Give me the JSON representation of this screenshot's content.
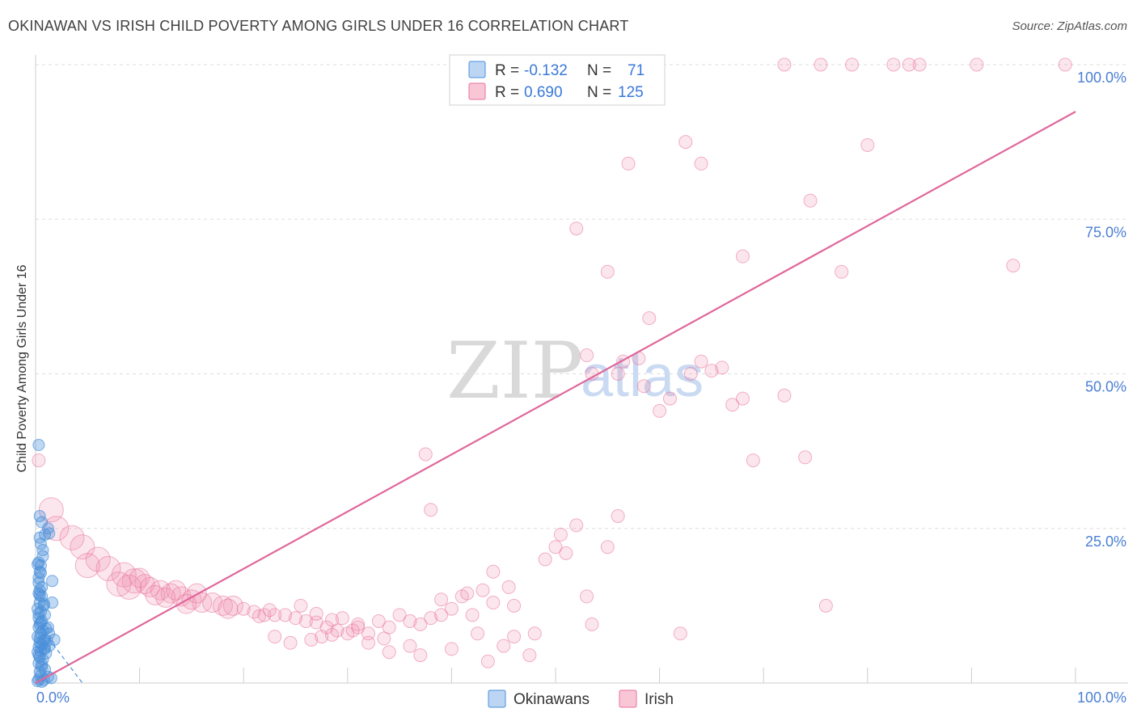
{
  "header": {
    "title": "OKINAWAN VS IRISH CHILD POVERTY AMONG GIRLS UNDER 16 CORRELATION CHART",
    "source": "Source: ZipAtlas.com"
  },
  "legend_top": {
    "r_label": "R =",
    "n_label": "N =",
    "rows": [
      {
        "r": "-0.132",
        "n": "71"
      },
      {
        "r": "0.690",
        "n": "125"
      }
    ]
  },
  "watermark": {
    "zip": "ZIP",
    "atlas": "atlas"
  },
  "colors": {
    "okinawan": "#4a90d9",
    "okinawan_fill": "rgba(74,144,217,0.35)",
    "irish": "#e8729a",
    "irish_fill": "rgba(240,140,175,0.22)",
    "irish_line": "#e0679a",
    "tick_text": "#4a7fd4",
    "grid": "#dddddd"
  },
  "chart_data": {
    "type": "scatter",
    "title": "OKINAWAN VS IRISH CHILD POVERTY AMONG GIRLS UNDER 16 CORRELATION CHART",
    "xlabel": "",
    "ylabel": "Child Poverty Among Girls Under 16",
    "xlim": [
      0,
      100
    ],
    "ylim": [
      0,
      100
    ],
    "x_tick_labels": [
      "0.0%",
      "100.0%"
    ],
    "y_ticks": [
      25,
      50,
      75,
      100
    ],
    "y_tick_labels": [
      "25.0%",
      "50.0%",
      "75.0%",
      "100.0%"
    ],
    "legend": [
      "Okinawans",
      "Irish"
    ],
    "series": [
      {
        "name": "Okinawans",
        "r": -0.132,
        "n": 71,
        "trend": {
          "x": [
            0,
            4.5
          ],
          "y": [
            10.0,
            0.0
          ]
        },
        "points": [
          [
            0.3,
            38.5
          ],
          [
            0.4,
            27
          ],
          [
            0.6,
            26
          ],
          [
            1.2,
            25
          ],
          [
            0.9,
            24
          ],
          [
            1.3,
            24.2
          ],
          [
            0.5,
            22.5
          ],
          [
            0.7,
            21.5
          ],
          [
            0.3,
            19.5
          ],
          [
            0.5,
            19
          ],
          [
            0.4,
            18
          ],
          [
            1.6,
            16.5
          ],
          [
            0.3,
            17
          ],
          [
            0.4,
            15
          ],
          [
            0.3,
            14.5
          ],
          [
            0.6,
            14
          ],
          [
            1.6,
            13
          ],
          [
            0.4,
            13
          ],
          [
            0.8,
            12.5
          ],
          [
            0.2,
            12
          ],
          [
            0.5,
            11.5
          ],
          [
            0.9,
            11
          ],
          [
            0.3,
            10.5
          ],
          [
            0.6,
            10
          ],
          [
            0.4,
            9.5
          ],
          [
            1.2,
            9
          ],
          [
            0.3,
            9
          ],
          [
            0.7,
            8.5
          ],
          [
            0.5,
            8
          ],
          [
            1.3,
            8
          ],
          [
            0.2,
            7.5
          ],
          [
            0.9,
            7
          ],
          [
            1.8,
            7
          ],
          [
            1.1,
            6.8
          ],
          [
            0.4,
            6.5
          ],
          [
            0.6,
            6.2
          ],
          [
            1.3,
            6
          ],
          [
            0.3,
            5.8
          ],
          [
            0.8,
            5.5
          ],
          [
            0.5,
            5.2
          ],
          [
            0.2,
            5
          ],
          [
            1.0,
            4.8
          ],
          [
            0.4,
            4.2
          ],
          [
            0.7,
            3.8
          ],
          [
            0.3,
            3.2
          ],
          [
            0.6,
            2.6
          ],
          [
            0.9,
            2.2
          ],
          [
            0.4,
            1.8
          ],
          [
            0.5,
            1.2
          ],
          [
            1.2,
            1
          ],
          [
            1.5,
            0.8
          ],
          [
            0.3,
            0.6
          ],
          [
            0.8,
            0.5
          ],
          [
            0.2,
            0.3
          ],
          [
            0.6,
            0.2
          ],
          [
            0.4,
            7.2
          ],
          [
            0.7,
            6.8
          ],
          [
            1.0,
            8.8
          ],
          [
            0.5,
            9.8
          ],
          [
            0.3,
            11.2
          ],
          [
            0.8,
            12.8
          ],
          [
            0.4,
            14.2
          ],
          [
            0.6,
            15.5
          ],
          [
            0.3,
            16.2
          ],
          [
            0.5,
            17.8
          ],
          [
            0.2,
            19.2
          ],
          [
            0.7,
            20.5
          ],
          [
            0.4,
            23.5
          ],
          [
            0.6,
            3
          ],
          [
            0.3,
            4.5
          ],
          [
            0.9,
            5.6
          ]
        ]
      },
      {
        "name": "Irish",
        "r": 0.69,
        "n": 125,
        "trend": {
          "x": [
            0,
            100
          ],
          "y": [
            0,
            92.4
          ]
        },
        "points": [
          [
            0.3,
            36
          ],
          [
            1.5,
            28
          ],
          [
            2.0,
            25
          ],
          [
            3.5,
            23.5
          ],
          [
            4.5,
            22
          ],
          [
            6.0,
            20
          ],
          [
            7.0,
            18.5
          ],
          [
            8.5,
            17.5
          ],
          [
            9.5,
            16.5
          ],
          [
            10.5,
            16
          ],
          [
            11.0,
            15.5
          ],
          [
            12.0,
            15
          ],
          [
            13.0,
            14.5
          ],
          [
            14.0,
            14
          ],
          [
            15.0,
            13.5
          ],
          [
            16.0,
            13
          ],
          [
            17.0,
            13
          ],
          [
            18.0,
            12.5
          ],
          [
            19.0,
            12.5
          ],
          [
            20.0,
            12
          ],
          [
            21.0,
            11.5
          ],
          [
            22.0,
            11
          ],
          [
            23.0,
            11
          ],
          [
            24.0,
            11
          ],
          [
            25.0,
            10.5
          ],
          [
            26.0,
            10
          ],
          [
            27.0,
            9.8
          ],
          [
            28.0,
            9
          ],
          [
            29.0,
            8.5
          ],
          [
            30.0,
            8
          ],
          [
            31.0,
            9.5
          ],
          [
            32.0,
            8
          ],
          [
            33.0,
            10
          ],
          [
            34.0,
            9
          ],
          [
            35.0,
            11
          ],
          [
            36.0,
            10
          ],
          [
            37.0,
            9.5
          ],
          [
            38.0,
            10.5
          ],
          [
            39.0,
            11
          ],
          [
            40.0,
            12
          ],
          [
            41.0,
            14
          ],
          [
            42.0,
            11
          ],
          [
            43.0,
            15
          ],
          [
            44.0,
            13
          ],
          [
            45.0,
            6
          ],
          [
            46.0,
            7.5
          ],
          [
            47.5,
            4.5
          ],
          [
            48.0,
            8
          ],
          [
            49.0,
            20
          ],
          [
            50.0,
            22
          ],
          [
            50.5,
            24
          ],
          [
            51.0,
            21
          ],
          [
            52.0,
            25.5
          ],
          [
            53.0,
            14
          ],
          [
            53.5,
            9.5
          ],
          [
            55.0,
            22
          ],
          [
            56.0,
            27
          ],
          [
            37.5,
            37
          ],
          [
            38.0,
            28
          ],
          [
            42.5,
            8
          ],
          [
            40.0,
            5.5
          ],
          [
            43.5,
            3.5
          ],
          [
            23.0,
            7.5
          ],
          [
            27.5,
            7.5
          ],
          [
            32.0,
            6.5
          ],
          [
            36.0,
            6.0
          ],
          [
            37.0,
            4.5
          ],
          [
            34.0,
            5
          ],
          [
            44.0,
            18
          ],
          [
            45.5,
            15.5
          ],
          [
            46.0,
            12.5
          ],
          [
            41.5,
            14.5
          ],
          [
            39.0,
            13.5
          ],
          [
            30.5,
            8.5
          ],
          [
            31.0,
            9
          ],
          [
            28.5,
            7.8
          ],
          [
            26.5,
            7.0
          ],
          [
            24.5,
            6.5
          ],
          [
            29.5,
            10.5
          ],
          [
            33.5,
            7.2
          ],
          [
            53.0,
            53
          ],
          [
            53.5,
            50
          ],
          [
            58.5,
            48
          ],
          [
            56.0,
            50
          ],
          [
            60.0,
            44
          ],
          [
            61.0,
            46
          ],
          [
            63.0,
            50
          ],
          [
            64.0,
            52
          ],
          [
            68.0,
            46
          ],
          [
            69.0,
            36
          ],
          [
            72.0,
            46.5
          ],
          [
            74.0,
            36.5
          ],
          [
            76.0,
            12.5
          ],
          [
            62.0,
            8
          ],
          [
            72.0,
            100
          ],
          [
            75.5,
            100
          ],
          [
            78.5,
            100
          ],
          [
            82.5,
            100
          ],
          [
            84.0,
            100
          ],
          [
            85.0,
            100
          ],
          [
            90.5,
            100
          ],
          [
            99.0,
            100
          ],
          [
            52.0,
            73.5
          ],
          [
            55.0,
            66.5
          ],
          [
            57.0,
            84
          ],
          [
            59.0,
            59
          ],
          [
            62.5,
            87.5
          ],
          [
            64.0,
            84
          ],
          [
            68.0,
            69
          ],
          [
            74.5,
            78
          ],
          [
            77.5,
            66.5
          ],
          [
            80.0,
            87
          ],
          [
            94.0,
            67.5
          ],
          [
            56.5,
            52
          ],
          [
            58.0,
            52.5
          ],
          [
            65.0,
            50.5
          ],
          [
            66.0,
            51
          ],
          [
            67.0,
            45
          ],
          [
            5.0,
            19
          ],
          [
            8.0,
            16
          ],
          [
            9.0,
            15.5
          ],
          [
            10.0,
            17
          ],
          [
            11.5,
            14.2
          ],
          [
            12.5,
            13.8
          ],
          [
            13.5,
            15
          ],
          [
            14.5,
            12.8
          ],
          [
            15.5,
            14.5
          ],
          [
            18.5,
            12
          ],
          [
            21.5,
            10.8
          ],
          [
            22.5,
            11.8
          ],
          [
            25.5,
            12.5
          ],
          [
            27.0,
            11.2
          ],
          [
            28.5,
            10.2
          ]
        ]
      }
    ]
  },
  "bottom_legend": [
    {
      "label": "Okinawans"
    },
    {
      "label": "Irish"
    }
  ]
}
